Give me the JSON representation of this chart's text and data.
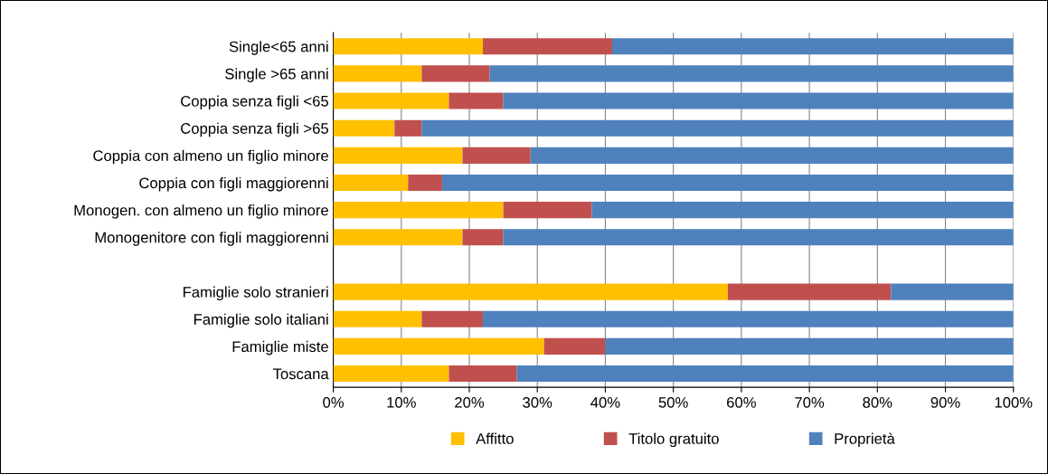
{
  "chart_data": {
    "type": "bar",
    "orientation": "horizontal",
    "stacked": true,
    "categories": [
      "Single<65 anni",
      "Single >65 anni",
      "Coppia senza figli <65",
      "Coppia senza figli >65",
      "Coppia con almeno un figlio minore",
      "Coppia con figli maggiorenni",
      "Monogen. con almeno un figlio minore",
      "Monogenitore con figli maggiorenni",
      null,
      "Famiglie solo stranieri",
      "Famiglie solo italiani",
      "Famiglie miste",
      "Toscana"
    ],
    "series": [
      {
        "name": "Affitto",
        "color": "#ffc000",
        "values": [
          22,
          13,
          17,
          9,
          19,
          11,
          25,
          19,
          null,
          58,
          13,
          31,
          17
        ]
      },
      {
        "name": "Titolo gratuito",
        "color": "#c0504d",
        "values": [
          19,
          10,
          8,
          4,
          10,
          5,
          13,
          6,
          null,
          24,
          9,
          9,
          10
        ]
      },
      {
        "name": "Proprietà",
        "color": "#4f81bd",
        "values": [
          59,
          77,
          75,
          87,
          71,
          84,
          62,
          75,
          null,
          18,
          78,
          60,
          73
        ]
      }
    ],
    "xlim": [
      0,
      100
    ],
    "xticks": [
      {
        "value": 0,
        "label": "0%"
      },
      {
        "value": 10,
        "label": "10%"
      },
      {
        "value": 20,
        "label": "20%"
      },
      {
        "value": 30,
        "label": "30%"
      },
      {
        "value": 40,
        "label": "40%"
      },
      {
        "value": 50,
        "label": "50%"
      },
      {
        "value": 60,
        "label": "60%"
      },
      {
        "value": 70,
        "label": "70%"
      },
      {
        "value": 80,
        "label": "80%"
      },
      {
        "value": 90,
        "label": "90%"
      },
      {
        "value": 100,
        "label": "100%"
      }
    ],
    "grid": "x",
    "legend": "bottom"
  }
}
